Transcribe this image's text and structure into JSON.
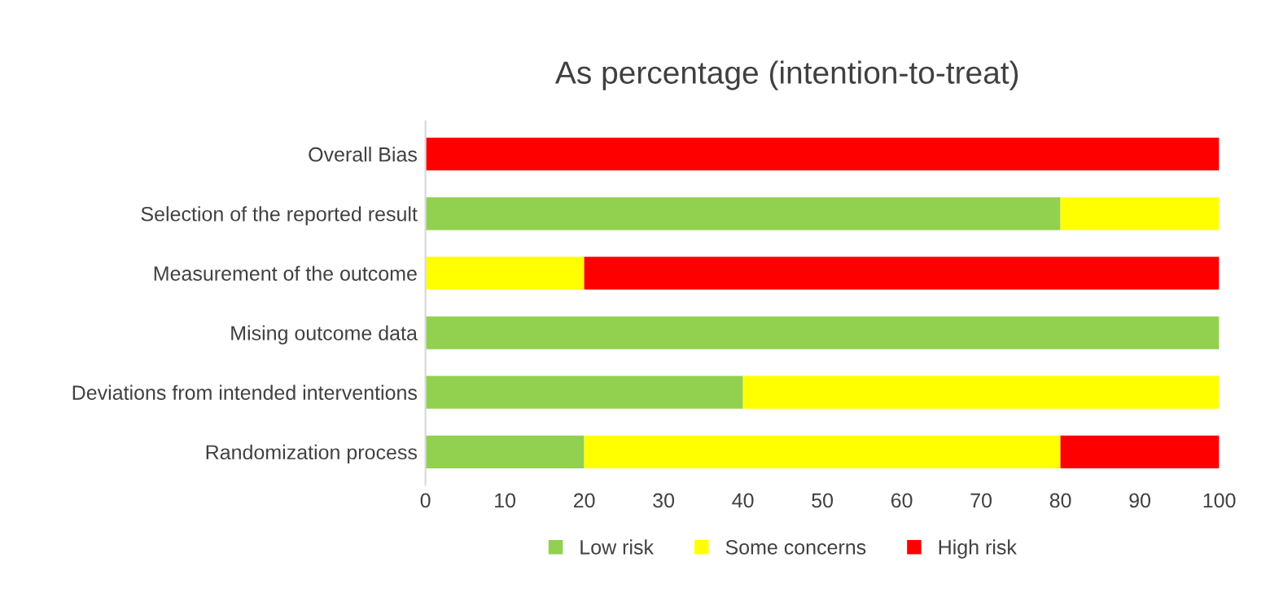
{
  "chart_data": {
    "type": "bar",
    "orientation": "horizontal",
    "stacked": true,
    "title": "As percentage (intention-to-treat)",
    "categories": [
      "Overall Bias",
      "Selection of the reported result",
      "Measurement of the outcome",
      "Mising outcome data",
      "Deviations from intended interventions",
      "Randomization process"
    ],
    "series": [
      {
        "name": "Low risk",
        "color": "#92d050",
        "values": [
          0,
          80,
          0,
          100,
          40,
          20
        ]
      },
      {
        "name": "Some concerns",
        "color": "#ffff00",
        "values": [
          0,
          20,
          20,
          0,
          60,
          60
        ]
      },
      {
        "name": "High risk",
        "color": "#ff0000",
        "values": [
          100,
          0,
          80,
          0,
          0,
          20
        ]
      }
    ],
    "xlim": [
      0,
      100
    ],
    "xticks": [
      0,
      10,
      20,
      30,
      40,
      50,
      60,
      70,
      80,
      90,
      100
    ],
    "grid": false,
    "legend": "bottom"
  }
}
